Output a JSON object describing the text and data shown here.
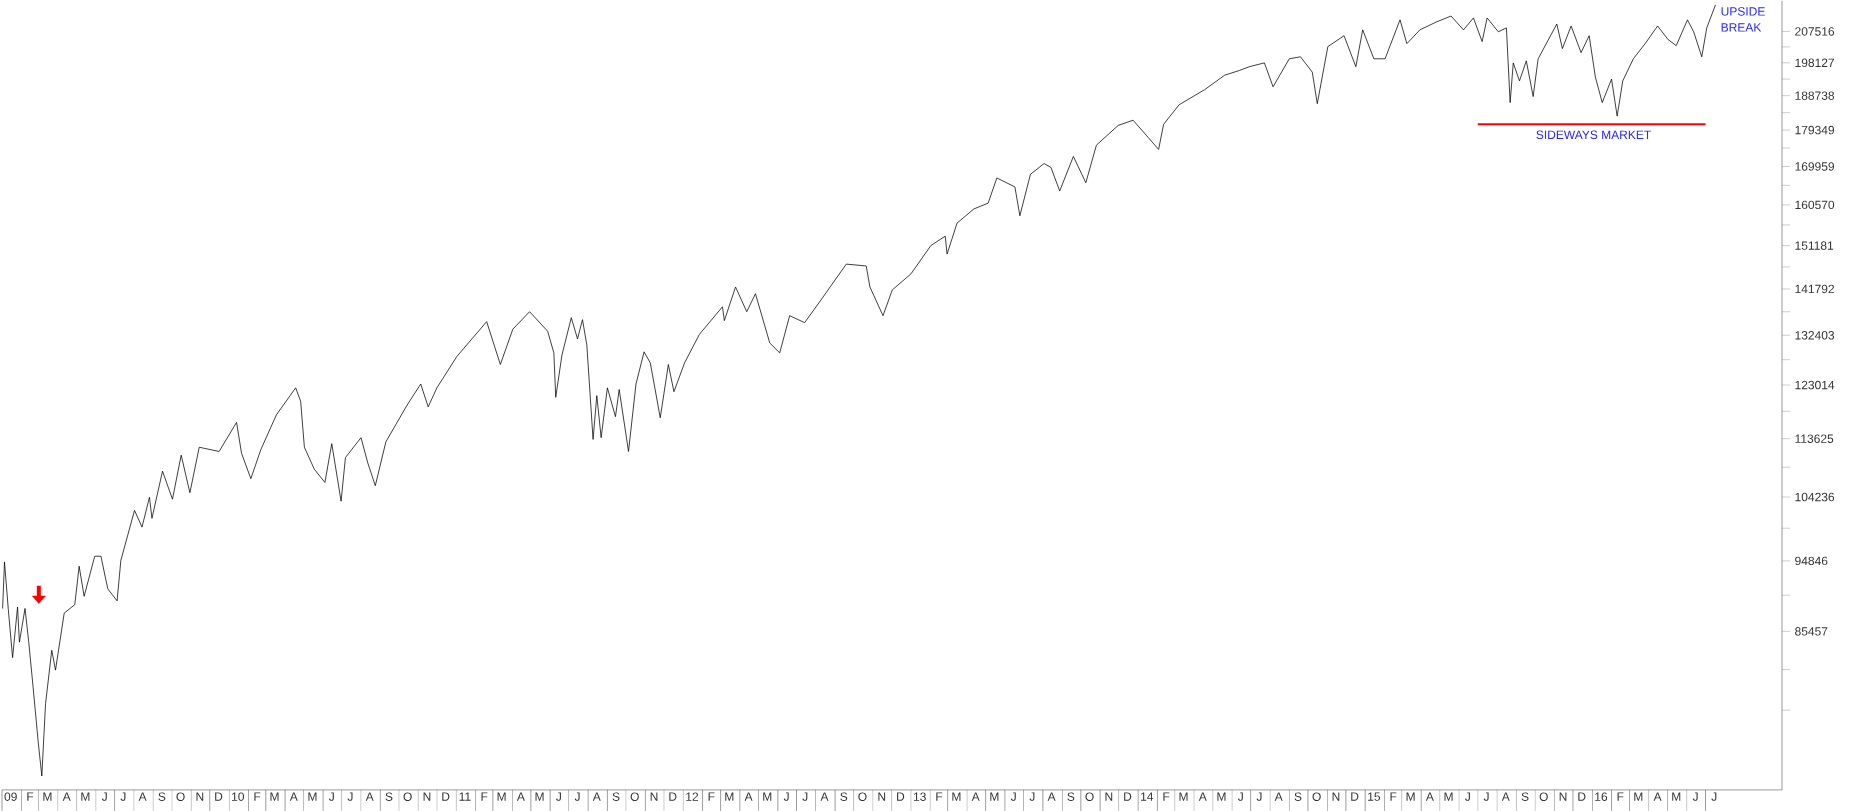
{
  "chart_data": {
    "type": "line",
    "log": "y",
    "xlim": [
      "2009-01-01",
      "2016-11-01"
    ],
    "ylim": [
      67600,
      217100
    ],
    "yticks": [
      207516,
      {
        "value": 202822,
        "label": null
      },
      198127,
      {
        "value": 193433,
        "label": null
      },
      188738,
      {
        "value": 184044,
        "label": null
      },
      179349,
      {
        "value": 174654,
        "label": null
      },
      169959,
      {
        "value": 165265,
        "label": null
      },
      160570,
      {
        "value": 155876,
        "label": null
      },
      151181,
      {
        "value": 146487,
        "label": null
      },
      141792,
      {
        "value": 137098,
        "label": null
      },
      132403,
      {
        "value": 127709,
        "label": null
      },
      123014,
      {
        "value": 118320,
        "label": null
      },
      113625,
      {
        "value": 108931,
        "label": null
      },
      104236,
      {
        "value": 99541,
        "label": null
      },
      94846,
      {
        "value": 90152,
        "label": null
      },
      85457,
      {
        "value": 80762,
        "label": null
      },
      {
        "value": 76068,
        "label": null
      }
    ],
    "xticks": [
      {
        "value": "2009-01-15",
        "label": "09"
      },
      {
        "value": "2009-02-15",
        "label": "F"
      },
      {
        "value": "2009-03-15",
        "label": "M"
      },
      {
        "value": "2009-04-15",
        "label": "A"
      },
      {
        "value": "2009-05-15",
        "label": "M"
      },
      {
        "value": "2009-06-15",
        "label": "J"
      },
      {
        "value": "2009-07-15",
        "label": "J"
      },
      {
        "value": "2009-08-15",
        "label": "A"
      },
      {
        "value": "2009-09-15",
        "label": "S"
      },
      {
        "value": "2009-10-15",
        "label": "O"
      },
      {
        "value": "2009-11-15",
        "label": "N"
      },
      {
        "value": "2009-12-15",
        "label": "D"
      },
      {
        "value": "2010-01-15",
        "label": "10"
      },
      {
        "value": "2010-02-15",
        "label": "F"
      },
      {
        "value": "2010-03-15",
        "label": "M"
      },
      {
        "value": "2010-04-15",
        "label": "A"
      },
      {
        "value": "2010-05-15",
        "label": "M"
      },
      {
        "value": "2010-06-15",
        "label": "J"
      },
      {
        "value": "2010-07-15",
        "label": "J"
      },
      {
        "value": "2010-08-15",
        "label": "A"
      },
      {
        "value": "2010-09-15",
        "label": "S"
      },
      {
        "value": "2010-10-15",
        "label": "O"
      },
      {
        "value": "2010-11-15",
        "label": "N"
      },
      {
        "value": "2010-12-15",
        "label": "D"
      },
      {
        "value": "2011-01-15",
        "label": "11"
      },
      {
        "value": "2011-02-15",
        "label": "F"
      },
      {
        "value": "2011-03-15",
        "label": "M"
      },
      {
        "value": "2011-04-15",
        "label": "A"
      },
      {
        "value": "2011-05-15",
        "label": "M"
      },
      {
        "value": "2011-06-15",
        "label": "J"
      },
      {
        "value": "2011-07-15",
        "label": "J"
      },
      {
        "value": "2011-08-15",
        "label": "A"
      },
      {
        "value": "2011-09-15",
        "label": "S"
      },
      {
        "value": "2011-10-15",
        "label": "O"
      },
      {
        "value": "2011-11-15",
        "label": "N"
      },
      {
        "value": "2011-12-15",
        "label": "D"
      },
      {
        "value": "2012-01-15",
        "label": "12"
      },
      {
        "value": "2012-02-15",
        "label": "F"
      },
      {
        "value": "2012-03-15",
        "label": "M"
      },
      {
        "value": "2012-04-15",
        "label": "A"
      },
      {
        "value": "2012-05-15",
        "label": "M"
      },
      {
        "value": "2012-06-15",
        "label": "J"
      },
      {
        "value": "2012-07-15",
        "label": "J"
      },
      {
        "value": "2012-08-15",
        "label": "A"
      },
      {
        "value": "2012-09-15",
        "label": "S"
      },
      {
        "value": "2012-10-15",
        "label": "O"
      },
      {
        "value": "2012-11-15",
        "label": "N"
      },
      {
        "value": "2012-12-15",
        "label": "D"
      },
      {
        "value": "2013-01-15",
        "label": "13"
      },
      {
        "value": "2013-02-15",
        "label": "F"
      },
      {
        "value": "2013-03-15",
        "label": "M"
      },
      {
        "value": "2013-04-15",
        "label": "A"
      },
      {
        "value": "2013-05-15",
        "label": "M"
      },
      {
        "value": "2013-06-15",
        "label": "J"
      },
      {
        "value": "2013-07-15",
        "label": "J"
      },
      {
        "value": "2013-08-15",
        "label": "A"
      },
      {
        "value": "2013-09-15",
        "label": "S"
      },
      {
        "value": "2013-10-15",
        "label": "O"
      },
      {
        "value": "2013-11-15",
        "label": "N"
      },
      {
        "value": "2013-12-15",
        "label": "D"
      },
      {
        "value": "2014-01-15",
        "label": "14"
      },
      {
        "value": "2014-02-15",
        "label": "F"
      },
      {
        "value": "2014-03-15",
        "label": "M"
      },
      {
        "value": "2014-04-15",
        "label": "A"
      },
      {
        "value": "2014-05-15",
        "label": "M"
      },
      {
        "value": "2014-06-15",
        "label": "J"
      },
      {
        "value": "2014-07-15",
        "label": "J"
      },
      {
        "value": "2014-08-15",
        "label": "A"
      },
      {
        "value": "2014-09-15",
        "label": "S"
      },
      {
        "value": "2014-10-15",
        "label": "O"
      },
      {
        "value": "2014-11-15",
        "label": "N"
      },
      {
        "value": "2014-12-15",
        "label": "D"
      },
      {
        "value": "2015-01-15",
        "label": "15"
      },
      {
        "value": "2015-02-15",
        "label": "F"
      },
      {
        "value": "2015-03-15",
        "label": "M"
      },
      {
        "value": "2015-04-15",
        "label": "A"
      },
      {
        "value": "2015-05-15",
        "label": "M"
      },
      {
        "value": "2015-06-15",
        "label": "J"
      },
      {
        "value": "2015-07-15",
        "label": "J"
      },
      {
        "value": "2015-08-15",
        "label": "A"
      },
      {
        "value": "2015-09-15",
        "label": "S"
      },
      {
        "value": "2015-10-15",
        "label": "O"
      },
      {
        "value": "2015-11-15",
        "label": "N"
      },
      {
        "value": "2015-12-15",
        "label": "D"
      },
      {
        "value": "2016-01-15",
        "label": "16"
      },
      {
        "value": "2016-02-15",
        "label": "F"
      },
      {
        "value": "2016-03-15",
        "label": "M"
      },
      {
        "value": "2016-04-15",
        "label": "A"
      },
      {
        "value": "2016-05-15",
        "label": "M"
      },
      {
        "value": "2016-06-15",
        "label": "J"
      },
      {
        "value": "2016-07-15",
        "label": "J"
      }
    ],
    "series": [
      {
        "color": "#000000",
        "x": [
          "2009-01-02",
          "2009-01-05",
          "2009-01-11",
          "2009-01-18",
          "2009-01-26",
          "2009-01-29",
          "2009-02-07",
          "2009-02-13",
          "2009-02-20",
          "2009-02-28",
          "2009-03-06",
          "2009-03-12",
          "2009-03-22",
          "2009-03-28",
          "2009-04-11",
          "2009-04-28",
          "2009-05-05",
          "2009-05-13",
          "2009-05-30",
          "2009-06-09",
          "2009-06-20",
          "2009-07-05",
          "2009-07-11",
          "2009-08-02",
          "2009-08-14",
          "2009-08-26",
          "2009-08-30",
          "2009-09-16",
          "2009-10-02",
          "2009-10-16",
          "2009-10-30",
          "2009-11-14",
          "2009-12-16",
          "2010-01-13",
          "2010-01-21",
          "2010-02-05",
          "2010-02-21",
          "2010-03-18",
          "2010-04-18",
          "2010-04-26",
          "2010-05-02",
          "2010-05-18",
          "2010-06-04",
          "2010-06-15",
          "2010-06-30",
          "2010-07-07",
          "2010-08-01",
          "2010-08-12",
          "2010-08-24",
          "2010-09-10",
          "2010-10-14",
          "2010-11-05",
          "2010-11-17",
          "2010-12-01",
          "2011-01-02",
          "2011-02-19",
          "2011-03-13",
          "2011-04-02",
          "2011-04-29",
          "2011-05-28",
          "2011-06-07",
          "2011-06-10",
          "2011-06-20",
          "2011-07-05",
          "2011-07-15",
          "2011-07-23",
          "2011-07-30",
          "2011-08-09",
          "2011-08-15",
          "2011-08-22",
          "2011-09-01",
          "2011-09-14",
          "2011-09-20",
          "2011-10-05",
          "2011-10-17",
          "2011-10-30",
          "2011-11-09",
          "2011-11-25",
          "2011-12-08",
          "2011-12-17",
          "2012-01-03",
          "2012-01-27",
          "2012-03-04",
          "2012-03-07",
          "2012-03-25",
          "2012-04-12",
          "2012-04-26",
          "2012-05-19",
          "2012-06-04",
          "2012-06-20",
          "2012-07-14",
          "2012-08-06",
          "2012-08-24",
          "2012-09-19",
          "2012-10-21",
          "2012-10-27",
          "2012-11-17",
          "2012-12-02",
          "2013-01-01",
          "2013-02-02",
          "2013-02-25",
          "2013-02-28",
          "2013-03-16",
          "2013-04-12",
          "2013-05-05",
          "2013-05-19",
          "2013-06-17",
          "2013-06-25",
          "2013-07-12",
          "2013-08-03",
          "2013-08-14",
          "2013-08-28",
          "2013-09-19",
          "2013-10-09",
          "2013-10-26",
          "2013-11-30",
          "2013-12-24",
          "2014-02-03",
          "2014-02-11",
          "2014-03-08",
          "2014-04-18",
          "2014-05-20",
          "2014-06-13",
          "2014-06-29",
          "2014-07-23",
          "2014-08-06",
          "2014-09-01",
          "2014-09-19",
          "2014-10-08",
          "2014-10-16",
          "2014-11-02",
          "2014-11-28",
          "2014-12-17",
          "2014-12-28",
          "2015-01-15",
          "2015-02-02",
          "2015-02-26",
          "2015-03-09",
          "2015-03-30",
          "2015-04-25",
          "2015-05-19",
          "2015-06-08",
          "2015-06-24",
          "2015-07-08",
          "2015-07-16",
          "2015-08-03",
          "2015-08-16",
          "2015-08-22",
          "2015-08-27",
          "2015-09-06",
          "2015-09-17",
          "2015-09-28",
          "2015-10-06",
          "2015-11-05",
          "2015-11-14",
          "2015-11-28",
          "2015-12-14",
          "2015-12-27",
          "2016-01-06",
          "2016-01-17",
          "2016-02-01",
          "2016-02-10",
          "2016-02-19",
          "2016-03-07",
          "2016-03-26",
          "2016-04-15",
          "2016-05-02",
          "2016-05-15",
          "2016-06-02",
          "2016-06-12",
          "2016-06-25",
          "2016-07-03",
          "2016-07-17"
        ],
        "values": [
          88400,
          94700,
          88400,
          82200,
          88600,
          84100,
          88400,
          84100,
          78700,
          72700,
          69000,
          76800,
          83100,
          80700,
          87800,
          88900,
          94100,
          90000,
          95500,
          95500,
          91000,
          89400,
          94900,
          102200,
          99700,
          104200,
          101000,
          108300,
          103900,
          110900,
          104900,
          112200,
          111500,
          116400,
          111200,
          107100,
          111800,
          117700,
          122500,
          120100,
          112200,
          108600,
          106500,
          112800,
          103600,
          110500,
          113800,
          109600,
          106000,
          113100,
          119400,
          123200,
          119100,
          122500,
          128300,
          135100,
          126800,
          133600,
          137100,
          133200,
          129000,
          120800,
          128600,
          135900,
          131700,
          135500,
          130500,
          113500,
          121100,
          113800,
          122500,
          117400,
          122200,
          111500,
          123200,
          129200,
          127100,
          117200,
          126800,
          121800,
          127100,
          132600,
          138100,
          135300,
          142200,
          137100,
          140800,
          130900,
          129000,
          136300,
          134900,
          138900,
          142200,
          147100,
          146700,
          142200,
          136300,
          141600,
          145000,
          151200,
          153300,
          149300,
          156300,
          159600,
          161000,
          167100,
          164900,
          158000,
          168000,
          170700,
          169700,
          163900,
          172500,
          165900,
          175400,
          180600,
          182000,
          174300,
          180900,
          186200,
          190400,
          194500,
          195900,
          197000,
          198100,
          191200,
          199300,
          199900,
          195400,
          186500,
          202900,
          206200,
          197000,
          208000,
          199300,
          199300,
          211100,
          203800,
          208000,
          210400,
          212300,
          208000,
          211700,
          204400,
          211700,
          207400,
          208600,
          186800,
          198100,
          192900,
          198700,
          188500,
          199300,
          209800,
          202300,
          209200,
          201100,
          206200,
          194000,
          186800,
          193400,
          183100,
          192900,
          199300,
          203800,
          209200,
          205000,
          203200,
          211100,
          207400,
          199900,
          208600,
          215800
        ]
      },
      {
        "type": "line",
        "color": "#ff0000",
        "x": [
          "2015-07-01",
          "2016-07-01"
        ],
        "values": [
          180900,
          180900
        ]
      }
    ],
    "annotations": [
      {
        "text": "UPSIDE BREAK",
        "x": "2016-07-17",
        "y": 215800
      },
      {
        "text": "SIDEWAYS MARKET",
        "x": "2016-01-03",
        "y": 180900
      }
    ]
  }
}
